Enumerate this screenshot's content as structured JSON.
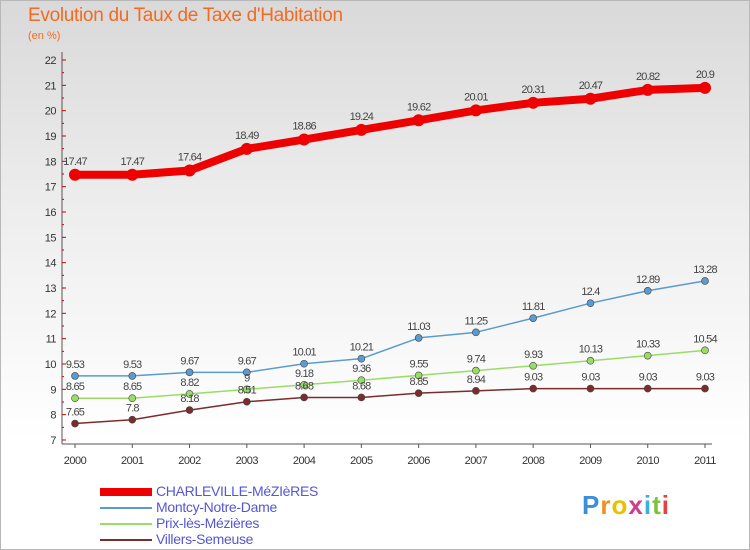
{
  "header": {
    "title": "Evolution du Taux de Taxe d'Habitation",
    "unit": "(en %)"
  },
  "logo": {
    "text": "Proxiti"
  },
  "colors": {
    "charleville": "#ee0000",
    "montcy": "#5b9bd0",
    "prix": "#99dd66",
    "villers": "#7b2c2c",
    "axis": "#555555",
    "grid_tick": "#cc0000"
  },
  "chart_data": {
    "type": "line",
    "title": "Evolution du Taux de Taxe d'Habitation",
    "ylabel": "(en %)",
    "x": [
      "2000",
      "2001",
      "2002",
      "2003",
      "2004",
      "2005",
      "2006",
      "2007",
      "2008",
      "2009",
      "2010",
      "2011"
    ],
    "ylim": [
      7,
      22
    ],
    "yticks": [
      7,
      8,
      9,
      10,
      11,
      12,
      13,
      14,
      15,
      16,
      17,
      18,
      19,
      20,
      21,
      22
    ],
    "legend_position": "bottom-left",
    "series": [
      {
        "name": "CHARLEVILLE-MéZIèRES",
        "values": [
          17.47,
          17.47,
          17.64,
          18.49,
          18.86,
          19.24,
          19.62,
          20.01,
          20.31,
          20.47,
          20.82,
          20.9
        ],
        "labels": [
          "17.47",
          "17.47",
          "17.64",
          "18.49",
          "18.86",
          "19.24",
          "19.62",
          "20.01",
          "20.31",
          "20.47",
          "20.82",
          "20.9"
        ]
      },
      {
        "name": "Montcy-Notre-Dame",
        "values": [
          9.53,
          9.53,
          9.67,
          9.67,
          10.01,
          10.21,
          11.03,
          11.25,
          11.81,
          12.4,
          12.89,
          13.28
        ],
        "labels": [
          "9.53",
          "9.53",
          "9.67",
          "9.67",
          "10.01",
          "10.21",
          "11.03",
          "11.25",
          "11.81",
          "12.4",
          "12.89",
          "13.28"
        ]
      },
      {
        "name": "Prix-lès-Mézières",
        "values": [
          8.65,
          8.65,
          8.82,
          9.0,
          9.18,
          9.36,
          9.55,
          9.74,
          9.93,
          10.13,
          10.33,
          10.54
        ],
        "labels": [
          "8.65",
          "8.65",
          "8.82",
          "9",
          "9.18",
          "9.36",
          "9.55",
          "9.74",
          "9.93",
          "10.13",
          "10.33",
          "10.54"
        ]
      },
      {
        "name": "Villers-Semeuse",
        "values": [
          7.65,
          7.8,
          8.18,
          8.51,
          8.68,
          8.68,
          8.85,
          8.94,
          9.03,
          9.03,
          9.03,
          9.03
        ],
        "labels": [
          "7.65",
          "7.8",
          "8.18",
          "8.51",
          "8.68",
          "8.68",
          "8.85",
          "8.94",
          "9.03",
          "9.03",
          "9.03",
          "9.03"
        ]
      }
    ]
  }
}
